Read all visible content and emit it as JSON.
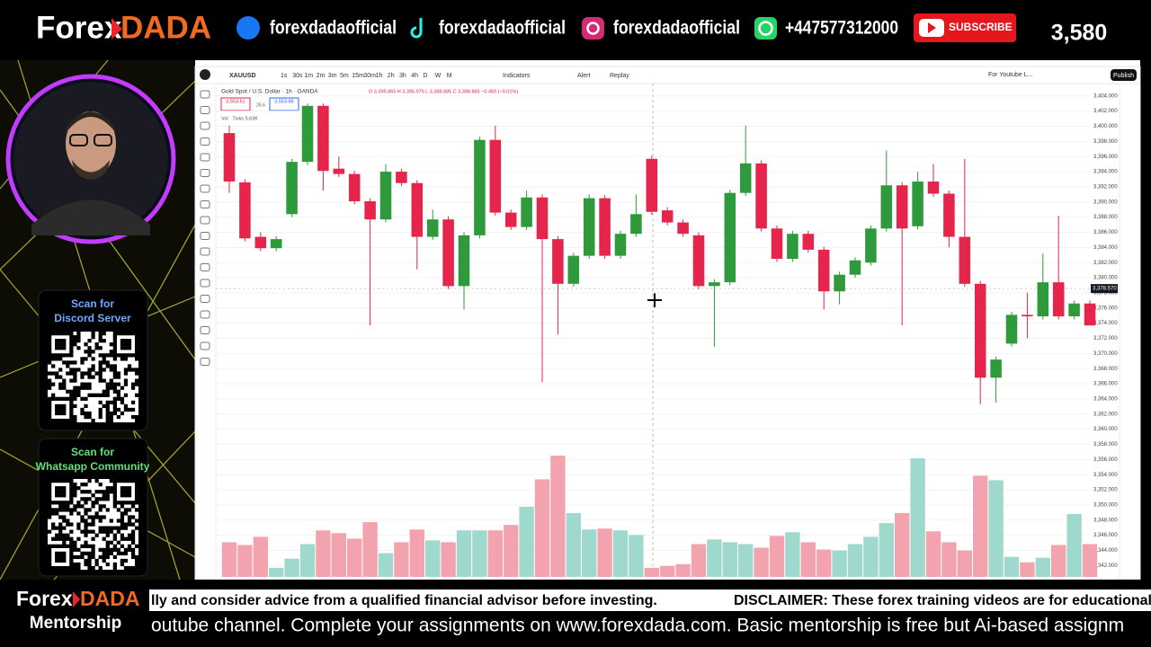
{
  "header": {
    "logo": [
      "Forex",
      "DADA"
    ],
    "socials": [
      "forexdadaofficial",
      "forexdadaofficial",
      "forexdadaofficial",
      "+447577312000"
    ],
    "subscribe": "SUBSCRIBE",
    "count": "3,580"
  },
  "sidebar": {
    "qr": [
      {
        "line1": "Scan for",
        "line2": "Discord Server"
      },
      {
        "line1": "Scan for",
        "line2": "Whatsapp Community"
      }
    ]
  },
  "chart_data": {
    "type": "candlestick",
    "symbol": "XAUUSD",
    "timeframes": [
      "1s",
      "30s",
      "1m",
      "2m",
      "3m",
      "5m",
      "15m",
      "30m",
      "1h",
      "2h",
      "3h",
      "4h",
      "D",
      "W",
      "M"
    ],
    "toolbar": [
      "Indicators",
      "Alert",
      "Replay"
    ],
    "layout_name": "For Youtube L...",
    "publish": "Publish",
    "title": "Gold Spot / U.S. Dollar · 1h · OANDA",
    "ohlc_text": "O 3,395.865 H 3,395.975 L 3,388.885 C 3,388.885 −0.450 (−0.01%)",
    "quote": [
      "3,553.51",
      "25.6",
      "3,553.88"
    ],
    "volume_legend": "Vol · Ticks 5.63K",
    "up_color": "#2f9a3c",
    "down_color": "#e5254b",
    "up_volume_color": "#9fd8cc",
    "down_volume_color": "#f3a3ad",
    "candles": [
      [
        3399.1,
        3400.1,
        3391.2,
        3392.7
      ],
      [
        3392.6,
        3393.0,
        3384.8,
        3385.2
      ],
      [
        3385.4,
        3386.0,
        3383.5,
        3383.9
      ],
      [
        3383.9,
        3385.5,
        3383.5,
        3385.1
      ],
      [
        3388.4,
        3395.7,
        3388.0,
        3395.3
      ],
      [
        3395.3,
        3403.0,
        3394.9,
        3402.7
      ],
      [
        3402.7,
        3403.0,
        3391.5,
        3394.1
      ],
      [
        3394.4,
        3396.0,
        3393.3,
        3393.7
      ],
      [
        3393.7,
        3394.1,
        3389.7,
        3390.1
      ],
      [
        3390.1,
        3390.5,
        3373.7,
        3387.7
      ],
      [
        3387.7,
        3395.0,
        3387.3,
        3394.0
      ],
      [
        3394.0,
        3394.4,
        3392.1,
        3392.5
      ],
      [
        3392.5,
        3392.9,
        3381.1,
        3385.4
      ],
      [
        3385.4,
        3389.0,
        3385.0,
        3387.7
      ],
      [
        3387.7,
        3388.1,
        3378.5,
        3378.9
      ],
      [
        3378.9,
        3386.0,
        3375.8,
        3385.6
      ],
      [
        3385.6,
        3398.6,
        3385.2,
        3398.2
      ],
      [
        3398.2,
        3400.1,
        3388.2,
        3388.6
      ],
      [
        3388.6,
        3389.0,
        3386.3,
        3386.7
      ],
      [
        3386.7,
        3391.5,
        3386.3,
        3390.6
      ],
      [
        3390.6,
        3391.0,
        3366.2,
        3385.1
      ],
      [
        3385.1,
        3385.5,
        3372.5,
        3379.2
      ],
      [
        3379.2,
        3383.3,
        3378.8,
        3382.9
      ],
      [
        3382.9,
        3391.0,
        3382.5,
        3390.5
      ],
      [
        3390.5,
        3390.9,
        3382.5,
        3382.9
      ],
      [
        3382.9,
        3386.2,
        3382.5,
        3385.8
      ],
      [
        3385.8,
        3391.0,
        3385.4,
        3388.4
      ],
      [
        3395.7,
        3396.1,
        3388.3,
        3388.7
      ],
      [
        3388.9,
        3389.3,
        3386.9,
        3387.3
      ],
      [
        3387.3,
        3387.7,
        3385.4,
        3385.8
      ],
      [
        3385.6,
        3386.0,
        3378.5,
        3378.9
      ],
      [
        3378.9,
        3379.8,
        3370.9,
        3379.4
      ],
      [
        3379.4,
        3391.6,
        3379.0,
        3391.2
      ],
      [
        3391.2,
        3400.1,
        3390.8,
        3395.1
      ],
      [
        3395.1,
        3395.5,
        3386.1,
        3386.5
      ],
      [
        3386.5,
        3386.9,
        3382.1,
        3382.5
      ],
      [
        3382.5,
        3386.2,
        3382.1,
        3385.8
      ],
      [
        3385.8,
        3386.2,
        3383.3,
        3383.7
      ],
      [
        3383.7,
        3384.1,
        3375.8,
        3378.2
      ],
      [
        3378.2,
        3380.8,
        3376.5,
        3380.4
      ],
      [
        3380.4,
        3382.7,
        3380.0,
        3382.3
      ],
      [
        3382.0,
        3386.9,
        3381.6,
        3386.5
      ],
      [
        3386.5,
        3396.8,
        3386.1,
        3392.2
      ],
      [
        3392.2,
        3392.6,
        3373.7,
        3386.5
      ],
      [
        3386.8,
        3394.0,
        3386.4,
        3392.7
      ],
      [
        3392.7,
        3395.0,
        3390.7,
        3391.1
      ],
      [
        3391.1,
        3391.5,
        3384.0,
        3385.4
      ],
      [
        3385.4,
        3395.7,
        3378.8,
        3379.2
      ],
      [
        3379.2,
        3379.6,
        3363.3,
        3366.8
      ],
      [
        3366.8,
        3369.6,
        3363.5,
        3369.2
      ],
      [
        3371.3,
        3375.5,
        3370.9,
        3375.1
      ],
      [
        3375.1,
        3378.0,
        3372.0,
        3374.9
      ],
      [
        3374.9,
        3383.2,
        3374.5,
        3379.4
      ],
      [
        3379.4,
        3388.2,
        3374.5,
        3374.9
      ],
      [
        3374.9,
        3377.0,
        3374.5,
        3376.6
      ],
      [
        3376.6,
        3377.0,
        3373.7,
        3373.7
      ]
    ],
    "volume": [
      3.8,
      3.5,
      4.4,
      1.0,
      2.0,
      3.6,
      5.1,
      4.8,
      4.2,
      6.0,
      2.6,
      3.8,
      5.2,
      4.0,
      3.8,
      5.1,
      5.1,
      5.1,
      5.7,
      7.7,
      10.7,
      13.3,
      7.0,
      5.2,
      5.3,
      5.1,
      4.6,
      1.0,
      1.2,
      1.4,
      3.6,
      4.1,
      3.8,
      3.6,
      3.2,
      4.5,
      4.9,
      3.8,
      3.0,
      2.9,
      3.6,
      4.4,
      5.9,
      7.0,
      13.0,
      5.0,
      3.8,
      2.9,
      11.1,
      10.6,
      2.2,
      1.6,
      2.1,
      3.5,
      6.9,
      3.6
    ],
    "ylim": [
      3340.5,
      3405.4
    ],
    "yticks": [
      {
        "value": 3404,
        "label": "3,404.000"
      },
      {
        "value": 3402,
        "label": "3,402.000"
      },
      {
        "value": 3400,
        "label": "3,400.000"
      },
      {
        "value": 3398,
        "label": "3,398.000"
      },
      {
        "value": 3396,
        "label": "3,396.000"
      },
      {
        "value": 3394,
        "label": "3,394.000"
      },
      {
        "value": 3392,
        "label": "3,392.000"
      },
      {
        "value": 3390,
        "label": "3,390.000"
      },
      {
        "value": 3388,
        "label": "3,388.000"
      },
      {
        "value": 3386,
        "label": "3,386.000"
      },
      {
        "value": 3384,
        "label": "3,384.000"
      },
      {
        "value": 3382,
        "label": "3,382.000"
      },
      {
        "value": 3380,
        "label": "3,380.000"
      },
      {
        "value": 3378,
        "label": "3,378.000"
      },
      {
        "value": 3376,
        "label": "3,376.000"
      },
      {
        "value": 3374,
        "label": "3,374.000"
      },
      {
        "value": 3372,
        "label": "3,372.000"
      },
      {
        "value": 3370,
        "label": "3,370.000"
      },
      {
        "value": 3368,
        "label": "3,368.000"
      },
      {
        "value": 3366,
        "label": "3,366.000"
      },
      {
        "value": 3364,
        "label": "3,364.000"
      },
      {
        "value": 3362,
        "label": "3,362.000"
      },
      {
        "value": 3360,
        "label": "3,360.000"
      },
      {
        "value": 3358,
        "label": "3,358.000"
      },
      {
        "value": 3356,
        "label": "3,356.000"
      },
      {
        "value": 3354,
        "label": "3,354.000"
      },
      {
        "value": 3352,
        "label": "3,352.000"
      },
      {
        "value": 3350,
        "label": "3,350.000"
      },
      {
        "value": 3348,
        "label": "3,348.000"
      },
      {
        "value": 3346,
        "label": "3,346.000"
      },
      {
        "value": 3344,
        "label": "3,344.000"
      },
      {
        "value": 3342,
        "label": "3,342.000"
      }
    ],
    "last_price": {
      "value": 3378.57,
      "label": "3,378.570"
    },
    "grid": true
  },
  "footer": {
    "logo": [
      "Forex",
      "DADA"
    ],
    "subtitle": "Mentorship",
    "ticker": [
      "lly and consider advice from a qualified financial advisor before investing.",
      "DISCLAIMER: These forex training videos are for educational"
    ],
    "ticker2": "outube channel. Complete your assignments on www.forexdada.com. Basic mentorship is free but Ai-based assignm"
  }
}
